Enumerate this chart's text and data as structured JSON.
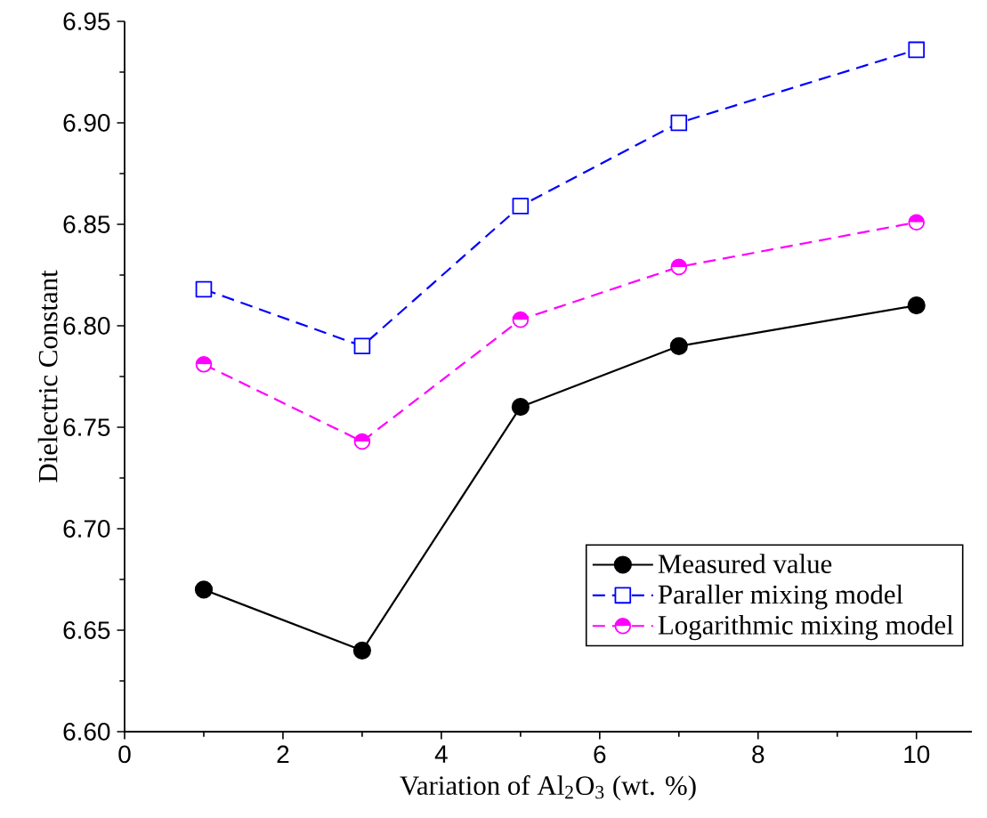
{
  "chart_data": {
    "type": "line",
    "xlabel": "Variation of Al$_{2}$O$_{3}$ (wt. %)",
    "ylabel": "Dielectric Constant",
    "x": [
      1,
      3,
      5,
      7,
      10
    ],
    "series": [
      {
        "name": "Measured value",
        "color": "#000000",
        "marker": "circle",
        "line_style": "solid",
        "values": [
          6.67,
          6.64,
          6.76,
          6.79,
          6.81
        ]
      },
      {
        "name": "Paraller mixing model",
        "color": "#0000ff",
        "marker": "square",
        "line_style": "dashed",
        "values": [
          6.818,
          6.79,
          6.859,
          6.9,
          6.936
        ]
      },
      {
        "name": "Logarithmic mixing model",
        "color": "#ff00ff",
        "marker": "circle",
        "line_style": "dashed",
        "values": [
          6.781,
          6.743,
          6.803,
          6.829,
          6.851
        ]
      }
    ],
    "xlim": [
      0,
      10.7
    ],
    "xticks": [
      0,
      2,
      4,
      6,
      8,
      10
    ],
    "ylim": [
      6.6,
      6.95
    ],
    "yticks": [
      {
        "value": 6.6,
        "label": "6.60"
      },
      6.65,
      {
        "value": 6.7,
        "label": "6.70"
      },
      6.75,
      {
        "value": 6.8,
        "label": "6.80"
      },
      6.85,
      {
        "value": 6.9,
        "label": "6.90"
      },
      6.95
    ],
    "grid": false,
    "legend": "bottom right"
  }
}
